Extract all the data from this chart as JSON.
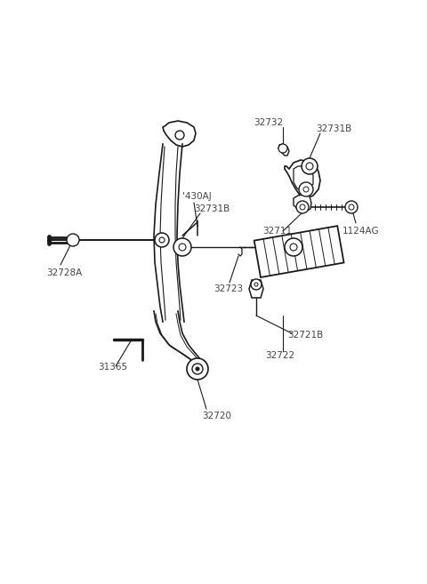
{
  "bg_color": "#ffffff",
  "line_color": "#1a1a1a",
  "text_color": "#444444",
  "figsize": [
    4.8,
    6.57
  ],
  "dpi": 100,
  "xlim": [
    0,
    480
  ],
  "ylim": [
    0,
    657
  ]
}
